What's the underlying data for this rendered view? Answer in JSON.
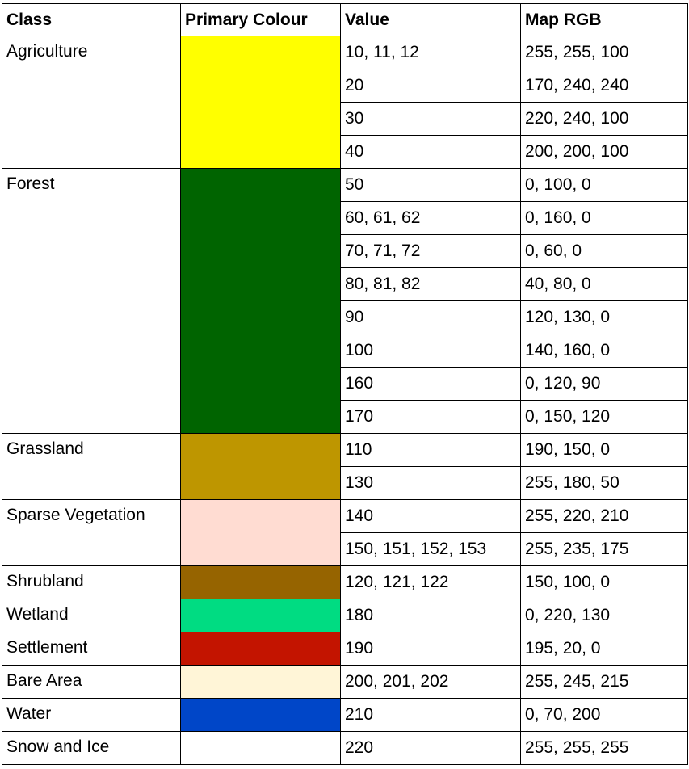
{
  "headers": [
    "Class",
    "Primary Colour",
    "Value",
    "Map RGB"
  ],
  "groups": [
    {
      "class": "Agriculture",
      "colour": "#ffff00",
      "rows": [
        {
          "value": "10, 11, 12",
          "rgb": "255, 255, 100"
        },
        {
          "value": "20",
          "rgb": "170, 240, 240"
        },
        {
          "value": "30",
          "rgb": "220, 240, 100"
        },
        {
          "value": "40",
          "rgb": "200, 200, 100"
        }
      ]
    },
    {
      "class": "Forest",
      "colour": "#006400",
      "rows": [
        {
          "value": "50",
          "rgb": "0, 100, 0"
        },
        {
          "value": "60, 61, 62",
          "rgb": "0, 160, 0"
        },
        {
          "value": "70, 71, 72",
          "rgb": "0, 60, 0"
        },
        {
          "value": "80, 81, 82",
          "rgb": "40, 80, 0"
        },
        {
          "value": "90",
          "rgb": "120, 130, 0"
        },
        {
          "value": "100",
          "rgb": "140, 160, 0"
        },
        {
          "value": "160",
          "rgb": "0, 120, 90"
        },
        {
          "value": "170",
          "rgb": "0, 150, 120"
        }
      ]
    },
    {
      "class": "Grassland",
      "colour": "#be9600",
      "rows": [
        {
          "value": "110",
          "rgb": "190, 150, 0"
        },
        {
          "value": "130",
          "rgb": "255, 180, 50"
        }
      ]
    },
    {
      "class": "Sparse Vegetation",
      "colour": "#ffdcd2",
      "rows": [
        {
          "value": "140",
          "rgb": "255, 220, 210"
        },
        {
          "value": "150, 151, 152, 153",
          "rgb": "255, 235, 175"
        }
      ]
    },
    {
      "class": "Shrubland",
      "colour": "#966400",
      "rows": [
        {
          "value": "120, 121, 122",
          "rgb": "150, 100, 0"
        }
      ]
    },
    {
      "class": "Wetland",
      "colour": "#00dc82",
      "rows": [
        {
          "value": "180",
          "rgb": "0, 220, 130"
        }
      ]
    },
    {
      "class": "Settlement",
      "colour": "#c31400",
      "rows": [
        {
          "value": "190",
          "rgb": "195, 20, 0"
        }
      ]
    },
    {
      "class": "Bare Area",
      "colour": "#fff5d7",
      "rows": [
        {
          "value": "200, 201, 202",
          "rgb": "255, 245, 215"
        }
      ]
    },
    {
      "class": "Water",
      "colour": "#0046c8",
      "rows": [
        {
          "value": "210",
          "rgb": "0, 70, 200"
        }
      ]
    },
    {
      "class": "Snow and Ice",
      "colour": "#ffffff",
      "rows": [
        {
          "value": "220",
          "rgb": "255, 255, 255"
        }
      ]
    }
  ]
}
